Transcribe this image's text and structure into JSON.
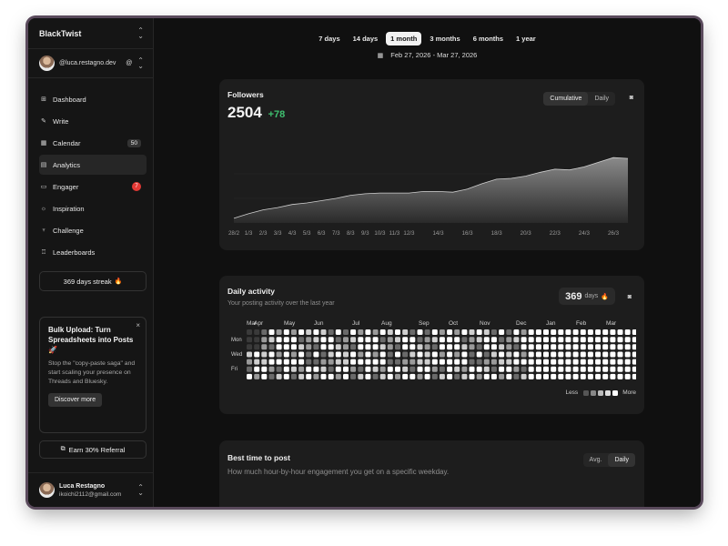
{
  "sidebar": {
    "brand": "BlackTwist",
    "account": "@luca.restagno.dev",
    "account_icon": "threads-icon",
    "items": [
      {
        "label": "Dashboard",
        "icon": "grid-icon",
        "badge": ""
      },
      {
        "label": "Write",
        "icon": "pen-icon",
        "badge": ""
      },
      {
        "label": "Calendar",
        "icon": "calendar-icon",
        "badge": "50"
      },
      {
        "label": "Analytics",
        "icon": "chart-icon",
        "badge": ""
      },
      {
        "label": "Engager",
        "icon": "chat-icon",
        "badge": "7"
      },
      {
        "label": "Inspiration",
        "icon": "bulb-icon",
        "badge": ""
      },
      {
        "label": "Challenge",
        "icon": "trophy-icon",
        "badge": ""
      },
      {
        "label": "Leaderboards",
        "icon": "podium-icon",
        "badge": ""
      }
    ],
    "streak_label": "369 days streak",
    "promo": {
      "title": "Bulk Upload: Turn Spreadsheets into Posts",
      "text": "Stop the \"copy-paste saga\" and start scaling your presence on Threads and Bluesky.",
      "button": "Discover more"
    },
    "referral_label": "Earn 30% Referral",
    "user": {
      "name": "Luca Restagno",
      "email": "ikoichi2112@gmail.com"
    }
  },
  "ranges": [
    "7 days",
    "14 days",
    "1 month",
    "3 months",
    "6 months",
    "1 year"
  ],
  "active_range": "1 month",
  "date_range": "Feb 27, 2026 - Mar 27, 2026",
  "followers": {
    "title": "Followers",
    "total": "2504",
    "delta": "+78",
    "toggle": [
      "Cumulative",
      "Daily"
    ],
    "toggle_active": "Cumulative"
  },
  "daily_activity": {
    "title": "Daily activity",
    "subtitle": "Your posting activity over the last year",
    "streak_value": "369",
    "streak_unit": "days",
    "months": [
      "Mar",
      "Apr",
      "May",
      "Jun",
      "Jul",
      "Aug",
      "Sep",
      "Oct",
      "Nov",
      "Dec",
      "Jan",
      "Feb",
      "Mar"
    ],
    "weekdays": [
      "Mon",
      "Wed",
      "Fri"
    ],
    "legend_less": "Less",
    "legend_more": "More"
  },
  "best_time": {
    "title": "Best time to post",
    "subtitle": "How much hour-by-hour engagement you get on a specific weekday.",
    "toggle": [
      "Avg.",
      "Daily"
    ],
    "toggle_active": "Daily"
  },
  "colors": {
    "accent_green": "#3fbf6f",
    "badge_red": "#e53935",
    "flame": "#ff6a3d"
  },
  "chart_data": {
    "type": "area",
    "x": [
      "28/2",
      "1/3",
      "2/3",
      "3/3",
      "4/3",
      "5/3",
      "6/3",
      "7/3",
      "8/3",
      "9/3",
      "10/3",
      "11/3",
      "12/3",
      "13/3",
      "14/3",
      "15/3",
      "16/3",
      "17/3",
      "18/3",
      "19/3",
      "20/3",
      "21/3",
      "22/3",
      "23/3",
      "24/3",
      "25/3",
      "26/3",
      "27/3"
    ],
    "tick_labels": [
      "28/2",
      "1/3",
      "2/3",
      "3/3",
      "4/3",
      "5/3",
      "6/3",
      "7/3",
      "8/3",
      "9/3",
      "10/3",
      "11/3",
      "12/3",
      "14/3",
      "16/3",
      "18/3",
      "20/3",
      "22/3",
      "24/3",
      "26/3"
    ],
    "values": [
      2426,
      2432,
      2437,
      2440,
      2444,
      2446,
      2449,
      2452,
      2456,
      2458,
      2459,
      2459,
      2459,
      2461,
      2461,
      2460,
      2464,
      2471,
      2477,
      2478,
      2481,
      2486,
      2490,
      2489,
      2493,
      2499,
      2505,
      2504
    ],
    "ylim": [
      2420,
      2510
    ],
    "grid": true
  }
}
